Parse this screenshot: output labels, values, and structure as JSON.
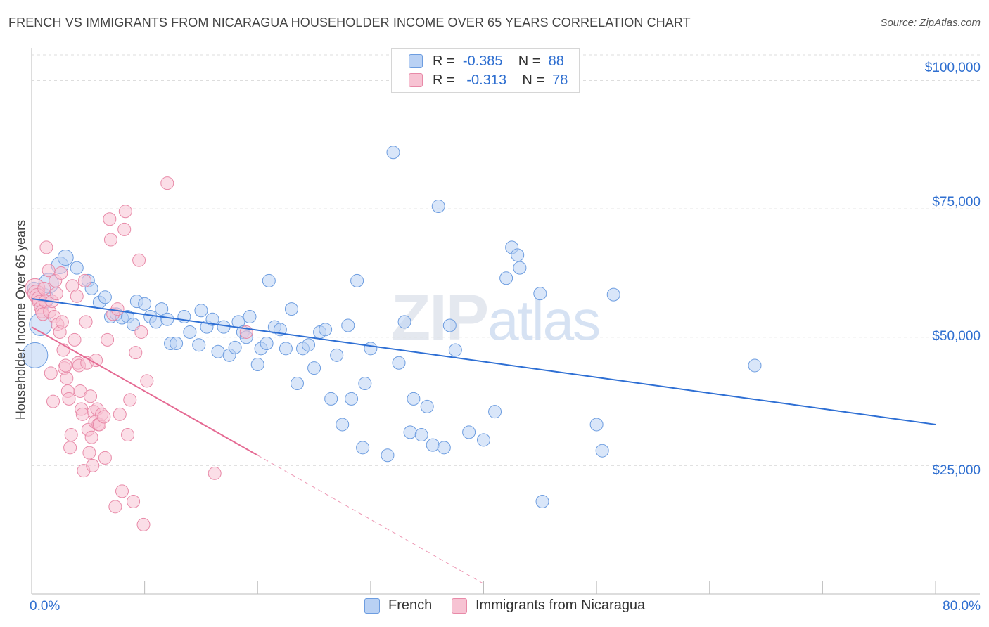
{
  "title": "FRENCH VS IMMIGRANTS FROM NICARAGUA HOUSEHOLDER INCOME OVER 65 YEARS CORRELATION CHART",
  "source": "Source: ZipAtlas.com",
  "watermark": {
    "zip": "ZIP",
    "atlas": "atlas"
  },
  "legend": {
    "rows": [
      {
        "r_label": "R =",
        "r_value": "-0.385",
        "n_label": "N =",
        "n_value": "88"
      },
      {
        "r_label": "R =",
        "r_value": "-0.313",
        "n_label": "N =",
        "n_value": "78"
      }
    ]
  },
  "colors": {
    "french_fill": "#b9d1f4",
    "french_stroke": "#6d9de0",
    "french_line": "#2e6fd4",
    "nic_fill": "#f7c3d3",
    "nic_stroke": "#e88aa8",
    "nic_line": "#e56a93",
    "grid": "#dddddd",
    "axis_label": "#2f6fd0"
  },
  "chart_data": {
    "type": "scatter",
    "title": "FRENCH VS IMMIGRANTS FROM NICARAGUA HOUSEHOLDER INCOME OVER 65 YEARS CORRELATION CHART",
    "xlabel": "",
    "ylabel": "Householder Income Over 65 years",
    "xlim": [
      0,
      80
    ],
    "ylim": [
      0,
      105000
    ],
    "x_tick_labels": [
      "0.0%",
      "80.0%"
    ],
    "y_ticks": [
      25000,
      50000,
      75000,
      100000
    ],
    "y_tick_labels": [
      "$25,000",
      "$50,000",
      "$75,000",
      "$100,000"
    ],
    "grid": "horizontal dashed",
    "legend_position": "top-center",
    "series": [
      {
        "name": "French",
        "r": -0.385,
        "n": 88,
        "trend": {
          "x0": 0,
          "y0": 57500,
          "x1": 80,
          "y1": 33000
        },
        "points": [
          [
            0.3,
            46500
          ],
          [
            0.8,
            52500
          ],
          [
            1.0,
            57500
          ],
          [
            1.5,
            60500
          ],
          [
            2.5,
            64000
          ],
          [
            3.0,
            65500
          ],
          [
            4.0,
            63500
          ],
          [
            5.0,
            61000
          ],
          [
            5.3,
            59500
          ],
          [
            6.0,
            56800
          ],
          [
            6.5,
            57800
          ],
          [
            7.0,
            54000
          ],
          [
            7.5,
            54500
          ],
          [
            8.0,
            53800
          ],
          [
            8.5,
            54000
          ],
          [
            9.0,
            52500
          ],
          [
            9.3,
            57000
          ],
          [
            10.0,
            56500
          ],
          [
            10.5,
            54000
          ],
          [
            11.0,
            53000
          ],
          [
            11.5,
            55500
          ],
          [
            12.0,
            53500
          ],
          [
            12.3,
            48800
          ],
          [
            12.8,
            48800
          ],
          [
            13.5,
            54000
          ],
          [
            14.0,
            51000
          ],
          [
            14.8,
            48500
          ],
          [
            15.0,
            55200
          ],
          [
            15.5,
            52000
          ],
          [
            16.0,
            53500
          ],
          [
            16.5,
            47200
          ],
          [
            17.0,
            52000
          ],
          [
            17.5,
            46500
          ],
          [
            18.0,
            48000
          ],
          [
            18.3,
            53000
          ],
          [
            18.7,
            51000
          ],
          [
            19.0,
            50000
          ],
          [
            19.3,
            54000
          ],
          [
            20.0,
            44700
          ],
          [
            20.3,
            47800
          ],
          [
            20.8,
            48800
          ],
          [
            21.0,
            61000
          ],
          [
            21.5,
            52000
          ],
          [
            22.0,
            51500
          ],
          [
            22.5,
            47800
          ],
          [
            23.0,
            55500
          ],
          [
            23.5,
            41000
          ],
          [
            24.0,
            47800
          ],
          [
            24.5,
            48500
          ],
          [
            25.0,
            44000
          ],
          [
            25.5,
            51000
          ],
          [
            26.0,
            51500
          ],
          [
            26.5,
            38000
          ],
          [
            27.0,
            46500
          ],
          [
            27.5,
            33000
          ],
          [
            28.0,
            52300
          ],
          [
            28.3,
            38000
          ],
          [
            28.8,
            61000
          ],
          [
            29.3,
            28500
          ],
          [
            29.5,
            41000
          ],
          [
            30.0,
            47800
          ],
          [
            32.0,
            86000
          ],
          [
            31.5,
            27000
          ],
          [
            32.5,
            45000
          ],
          [
            33.0,
            53000
          ],
          [
            33.5,
            31500
          ],
          [
            33.8,
            38000
          ],
          [
            34.5,
            31000
          ],
          [
            35.0,
            36500
          ],
          [
            35.5,
            29000
          ],
          [
            36.0,
            75500
          ],
          [
            36.5,
            28500
          ],
          [
            37.0,
            52300
          ],
          [
            37.5,
            47500
          ],
          [
            38.7,
            31500
          ],
          [
            40.0,
            30000
          ],
          [
            41.0,
            35500
          ],
          [
            42.0,
            61500
          ],
          [
            42.5,
            67500
          ],
          [
            43.0,
            66000
          ],
          [
            43.2,
            63500
          ],
          [
            45.0,
            58500
          ],
          [
            45.2,
            18000
          ],
          [
            50.0,
            33000
          ],
          [
            50.5,
            27900
          ],
          [
            51.5,
            58300
          ],
          [
            64.0,
            44500
          ],
          [
            0.2,
            59500
          ]
        ],
        "sizes": [
          38,
          34,
          32,
          30,
          26,
          24,
          20,
          20,
          20,
          20,
          20,
          20,
          20,
          20,
          20,
          20,
          20,
          20,
          20,
          20,
          20,
          20,
          20,
          20,
          20,
          20,
          20,
          20,
          20,
          20,
          20,
          20,
          20,
          20,
          20,
          20,
          20,
          20,
          20,
          20,
          20,
          20,
          20,
          20,
          20,
          20,
          20,
          20,
          20,
          20,
          20,
          20,
          20,
          20,
          20,
          20,
          20,
          20,
          20,
          20,
          20,
          20,
          20,
          20,
          20,
          20,
          20,
          20,
          20,
          20,
          20,
          20,
          20,
          20,
          20,
          20,
          20,
          20,
          20,
          20,
          20,
          20,
          20,
          20,
          20,
          20,
          20,
          20
        ]
      },
      {
        "name": "Immigrants from Nicaragua",
        "r": -0.313,
        "n": 78,
        "trend": {
          "x0": 0,
          "y0": 52000,
          "x1": 20,
          "y1": 27000
        },
        "trend_dashed_to": {
          "x": 40,
          "y": 2000
        },
        "points": [
          [
            0.3,
            59500
          ],
          [
            0.4,
            58500
          ],
          [
            0.5,
            58000
          ],
          [
            0.6,
            57500
          ],
          [
            0.7,
            56800
          ],
          [
            0.8,
            55800
          ],
          [
            0.9,
            55000
          ],
          [
            1.0,
            54500
          ],
          [
            1.1,
            59500
          ],
          [
            1.2,
            57000
          ],
          [
            1.3,
            67500
          ],
          [
            1.5,
            63000
          ],
          [
            1.6,
            55000
          ],
          [
            1.8,
            57000
          ],
          [
            2.0,
            54000
          ],
          [
            2.1,
            61000
          ],
          [
            2.2,
            58500
          ],
          [
            2.3,
            52500
          ],
          [
            2.5,
            51000
          ],
          [
            2.6,
            62500
          ],
          [
            2.7,
            53000
          ],
          [
            2.8,
            47500
          ],
          [
            2.9,
            44000
          ],
          [
            1.7,
            43000
          ],
          [
            1.9,
            37500
          ],
          [
            3.0,
            44500
          ],
          [
            3.1,
            42000
          ],
          [
            3.2,
            39500
          ],
          [
            3.3,
            38000
          ],
          [
            3.4,
            28500
          ],
          [
            3.5,
            31000
          ],
          [
            3.6,
            60000
          ],
          [
            3.8,
            49500
          ],
          [
            4.0,
            58000
          ],
          [
            4.1,
            45000
          ],
          [
            4.2,
            44500
          ],
          [
            4.3,
            39500
          ],
          [
            4.4,
            36000
          ],
          [
            4.5,
            35000
          ],
          [
            4.6,
            24000
          ],
          [
            4.7,
            61000
          ],
          [
            4.8,
            53000
          ],
          [
            4.9,
            45000
          ],
          [
            5.0,
            32000
          ],
          [
            5.1,
            27500
          ],
          [
            5.2,
            38500
          ],
          [
            5.3,
            30500
          ],
          [
            5.4,
            25000
          ],
          [
            5.5,
            35500
          ],
          [
            5.6,
            33500
          ],
          [
            5.7,
            45500
          ],
          [
            5.8,
            36000
          ],
          [
            5.9,
            33000
          ],
          [
            6.0,
            33000
          ],
          [
            6.2,
            35000
          ],
          [
            6.4,
            34500
          ],
          [
            6.5,
            26500
          ],
          [
            6.7,
            49500
          ],
          [
            6.9,
            73000
          ],
          [
            7.0,
            69000
          ],
          [
            7.2,
            54500
          ],
          [
            7.4,
            17000
          ],
          [
            7.6,
            55500
          ],
          [
            7.8,
            35000
          ],
          [
            8.0,
            20000
          ],
          [
            8.2,
            71000
          ],
          [
            8.3,
            74500
          ],
          [
            8.5,
            31000
          ],
          [
            8.7,
            37800
          ],
          [
            9.0,
            18000
          ],
          [
            9.2,
            47000
          ],
          [
            9.5,
            65000
          ],
          [
            9.7,
            51000
          ],
          [
            9.9,
            13500
          ],
          [
            10.2,
            41500
          ],
          [
            12.0,
            80000
          ],
          [
            16.2,
            23500
          ],
          [
            19.0,
            51000
          ]
        ],
        "sizes": [
          30,
          26,
          24,
          22,
          22,
          20,
          20,
          20,
          20,
          20,
          20,
          20,
          20,
          20,
          20,
          20,
          20,
          20,
          20,
          20,
          20,
          20,
          20,
          20,
          20,
          20,
          20,
          20,
          20,
          20,
          20,
          20,
          20,
          20,
          20,
          20,
          20,
          20,
          20,
          20,
          20,
          20,
          20,
          20,
          20,
          20,
          20,
          20,
          20,
          20,
          20,
          20,
          20,
          20,
          20,
          20,
          20,
          20,
          20,
          20,
          20,
          20,
          20,
          20,
          20,
          20,
          20,
          20,
          20,
          20,
          20,
          20,
          20,
          20,
          20,
          20,
          20,
          20
        ]
      }
    ]
  }
}
